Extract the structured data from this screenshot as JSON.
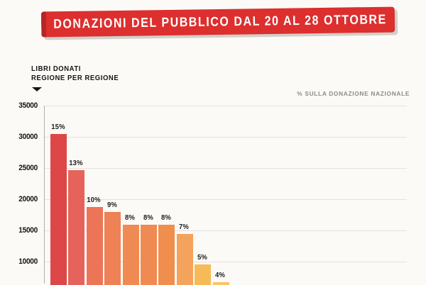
{
  "banner": {
    "title": "DONAZIONI DEL PUBBLICO DAL 20 AL 28 OTTOBRE",
    "bg_color": "#dc2f2e",
    "text_color": "#ffffff"
  },
  "chart_header": {
    "left_label_line1": "LIBRI DONATI",
    "left_label_line2": "REGIONE PER REGIONE",
    "right_note": "% SULLA DONAZIONE NAZIONALE"
  },
  "chart_data": {
    "type": "bar",
    "title": "DONAZIONI DEL PUBBLICO DAL 20 AL 28 OTTOBRE",
    "ylabel": "LIBRI DONATI REGIONE PER REGIONE",
    "annotation_right": "% SULLA DONAZIONE NAZIONALE",
    "y_ticks": [
      35000,
      30000,
      25000,
      20000,
      15000,
      10000
    ],
    "ylim_visible": [
      6500,
      35000
    ],
    "grid": true,
    "legend": false,
    "x_tick_labels_visible": false,
    "bars": [
      {
        "pct_label": "15%",
        "value": 30500,
        "color": "#dd4747"
      },
      {
        "pct_label": "13%",
        "value": 24700,
        "color": "#e6635c"
      },
      {
        "pct_label": "10%",
        "value": 18800,
        "color": "#ec7558"
      },
      {
        "pct_label": "9%",
        "value": 17900,
        "color": "#ee8156"
      },
      {
        "pct_label": "8%",
        "value": 15950,
        "color": "#ef8a52"
      },
      {
        "pct_label": "8%",
        "value": 15950,
        "color": "#ef8a52"
      },
      {
        "pct_label": "8%",
        "value": 15900,
        "color": "#f08e4e"
      },
      {
        "pct_label": "7%",
        "value": 14400,
        "color": "#f3a35c"
      },
      {
        "pct_label": "5%",
        "value": 9500,
        "color": "#f6bb56"
      },
      {
        "pct_label": "4%",
        "value": 6700,
        "color": "#f8c567"
      }
    ]
  }
}
